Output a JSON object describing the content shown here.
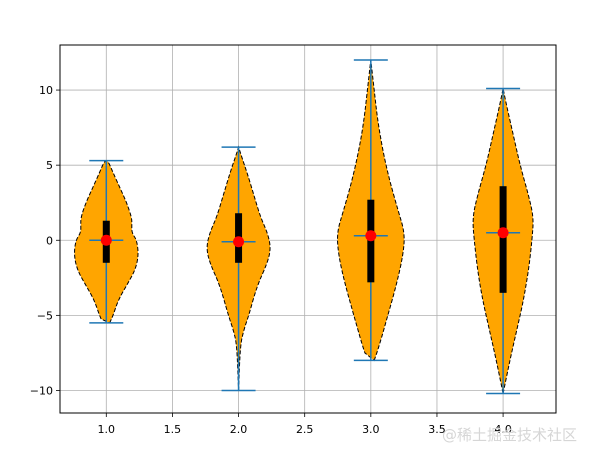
{
  "chart_data": {
    "type": "violin",
    "title": "",
    "xlabel": "",
    "ylabel": "",
    "xlim": [
      0.65,
      4.4
    ],
    "ylim": [
      -11.5,
      13.0
    ],
    "grid": true,
    "x_ticks": [
      1.0,
      1.5,
      2.0,
      2.5,
      3.0,
      3.5,
      4.0
    ],
    "x_tick_labels": [
      "1.0",
      "1.5",
      "2.0",
      "2.5",
      "3.0",
      "3.5",
      "4.0"
    ],
    "y_ticks": [
      -10,
      -5,
      0,
      5,
      10
    ],
    "y_tick_labels": [
      "−10",
      "−5",
      "0",
      "5",
      "10"
    ],
    "violins": [
      {
        "position": 1.0,
        "min": -5.5,
        "max": 5.3,
        "mean": 0.0,
        "median": 0.0,
        "q1": -1.5,
        "q3": 1.3,
        "density_profile": [
          [
            -5.5,
            0.02
          ],
          [
            -5.0,
            0.04
          ],
          [
            -4.0,
            0.07
          ],
          [
            -3.0,
            0.12
          ],
          [
            -2.0,
            0.17
          ],
          [
            -1.0,
            0.19
          ],
          [
            0.0,
            0.18
          ],
          [
            0.5,
            0.15
          ],
          [
            1.0,
            0.15
          ],
          [
            1.5,
            0.15
          ],
          [
            2.5,
            0.12
          ],
          [
            3.5,
            0.08
          ],
          [
            4.5,
            0.04
          ],
          [
            5.3,
            0.01
          ]
        ]
      },
      {
        "position": 2.0,
        "min": -10.0,
        "max": 6.2,
        "mean": -0.1,
        "median": -0.1,
        "q1": -1.5,
        "q3": 1.8,
        "density_profile": [
          [
            -10.0,
            0.0
          ],
          [
            -7.0,
            0.01
          ],
          [
            -6.0,
            0.03
          ],
          [
            -5.0,
            0.06
          ],
          [
            -3.0,
            0.11
          ],
          [
            -1.5,
            0.17
          ],
          [
            -0.5,
            0.19
          ],
          [
            0.5,
            0.17
          ],
          [
            1.5,
            0.13
          ],
          [
            3.0,
            0.09
          ],
          [
            4.5,
            0.05
          ],
          [
            5.5,
            0.02
          ],
          [
            6.2,
            0.0
          ]
        ]
      },
      {
        "position": 3.0,
        "min": -8.0,
        "max": 12.0,
        "mean": 0.3,
        "median": 0.3,
        "q1": -2.8,
        "q3": 2.7,
        "density_profile": [
          [
            -8.0,
            0.02
          ],
          [
            -7.0,
            0.05
          ],
          [
            -5.0,
            0.1
          ],
          [
            -3.0,
            0.15
          ],
          [
            -1.0,
            0.19
          ],
          [
            0.5,
            0.2
          ],
          [
            2.0,
            0.16
          ],
          [
            4.0,
            0.11
          ],
          [
            6.0,
            0.07
          ],
          [
            8.0,
            0.04
          ],
          [
            10.0,
            0.02
          ],
          [
            12.0,
            0.0
          ]
        ]
      },
      {
        "position": 4.0,
        "min": -10.2,
        "max": 10.1,
        "mean": 0.5,
        "median": 0.5,
        "q1": -3.5,
        "q3": 3.6,
        "density_profile": [
          [
            -10.2,
            0.0
          ],
          [
            -8.0,
            0.04
          ],
          [
            -6.0,
            0.08
          ],
          [
            -4.0,
            0.12
          ],
          [
            -2.0,
            0.15
          ],
          [
            0.0,
            0.17
          ],
          [
            1.5,
            0.18
          ],
          [
            3.0,
            0.15
          ],
          [
            5.0,
            0.1
          ],
          [
            7.0,
            0.06
          ],
          [
            9.0,
            0.02
          ],
          [
            10.1,
            0.0
          ]
        ]
      }
    ],
    "colors": {
      "body_fill": "#FFA500",
      "body_edge": "#000000",
      "stat_lines": "#1f77b4",
      "iqr_bar": "#000000",
      "mean_marker": "#FF0000",
      "grid": "#b0b0b0"
    },
    "watermark": "@稀土掘金技术社区"
  }
}
